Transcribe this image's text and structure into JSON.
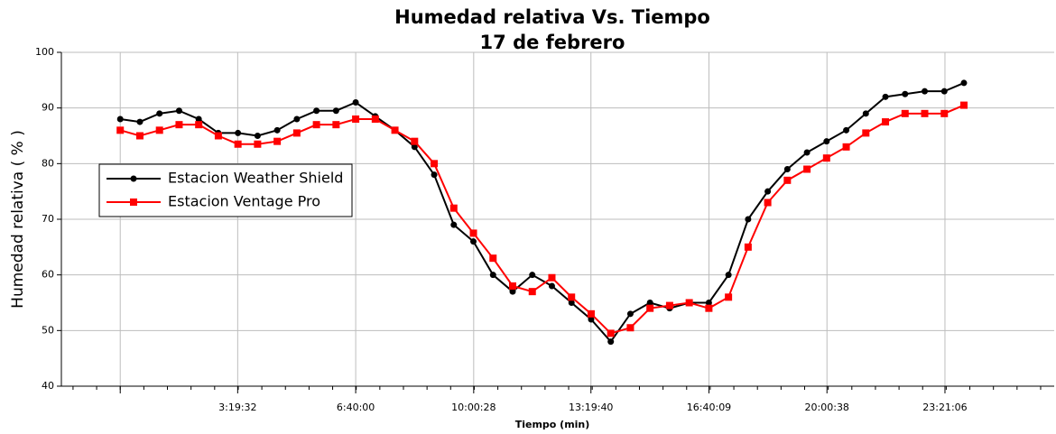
{
  "chart_data": {
    "type": "line",
    "title": "Humedad relativa Vs. Tiempo",
    "subtitle": "17 de febrero",
    "x_label": "Tiempo (min)",
    "y_label": "Humedad relativa ( % )",
    "x": [
      0,
      2000,
      4000,
      6000,
      8000,
      10000,
      12000,
      14000,
      16000,
      18000,
      20000,
      22000,
      24000,
      26000,
      28000,
      30000,
      32000,
      34000,
      36000,
      38000,
      40000,
      42000,
      44000,
      46000,
      48000,
      50000,
      52000,
      54000,
      56000,
      58000,
      60000,
      62000,
      64000,
      66000,
      68000,
      70000,
      72000,
      74000,
      76000,
      78000,
      80000,
      82000,
      84000,
      86000
    ],
    "series": [
      {
        "name": "Estacion Weather Shield",
        "color": "#000000",
        "marker": "circle",
        "values": [
          88,
          87.5,
          89,
          89.5,
          88,
          85.5,
          85.5,
          85,
          86,
          88,
          89.5,
          89.5,
          91,
          88.5,
          86,
          83,
          78,
          69,
          66,
          60,
          57,
          60,
          58,
          55,
          52,
          48,
          53,
          55,
          54,
          55,
          55,
          60,
          70,
          75,
          79,
          82,
          84,
          86,
          89,
          92,
          92.5,
          93,
          93,
          94.5
        ]
      },
      {
        "name": "Estacion Ventage Pro",
        "color": "#ff0000",
        "marker": "square",
        "values": [
          86,
          85,
          86,
          87,
          87,
          85,
          83.5,
          83.5,
          84,
          85.5,
          87,
          87,
          88,
          88,
          86,
          84,
          80,
          72,
          67.5,
          63,
          58,
          57,
          59.5,
          56,
          53,
          49.5,
          50.5,
          54,
          54.5,
          55,
          54,
          56,
          65,
          73,
          77,
          79,
          81,
          83,
          85.5,
          87.5,
          89,
          89,
          89,
          90.5
        ]
      }
    ],
    "xlim": [
      -6000,
      95200
    ],
    "xticks": [
      {
        "value": 0,
        "label": null
      },
      {
        "value": 11972,
        "label": "3:19:32"
      },
      {
        "value": 24000,
        "label": "6:40:00"
      },
      {
        "value": 36028,
        "label": "10:00:28"
      },
      {
        "value": 47980,
        "label": "13:19:40"
      },
      {
        "value": 60009,
        "label": "16:40:09"
      },
      {
        "value": 72038,
        "label": "20:00:38"
      },
      {
        "value": 84066,
        "label": "23:21:06"
      }
    ],
    "ylim": [
      40,
      100
    ],
    "yticks": [
      40,
      50,
      60,
      70,
      80,
      90,
      100
    ],
    "grid": true,
    "legend": "left"
  }
}
